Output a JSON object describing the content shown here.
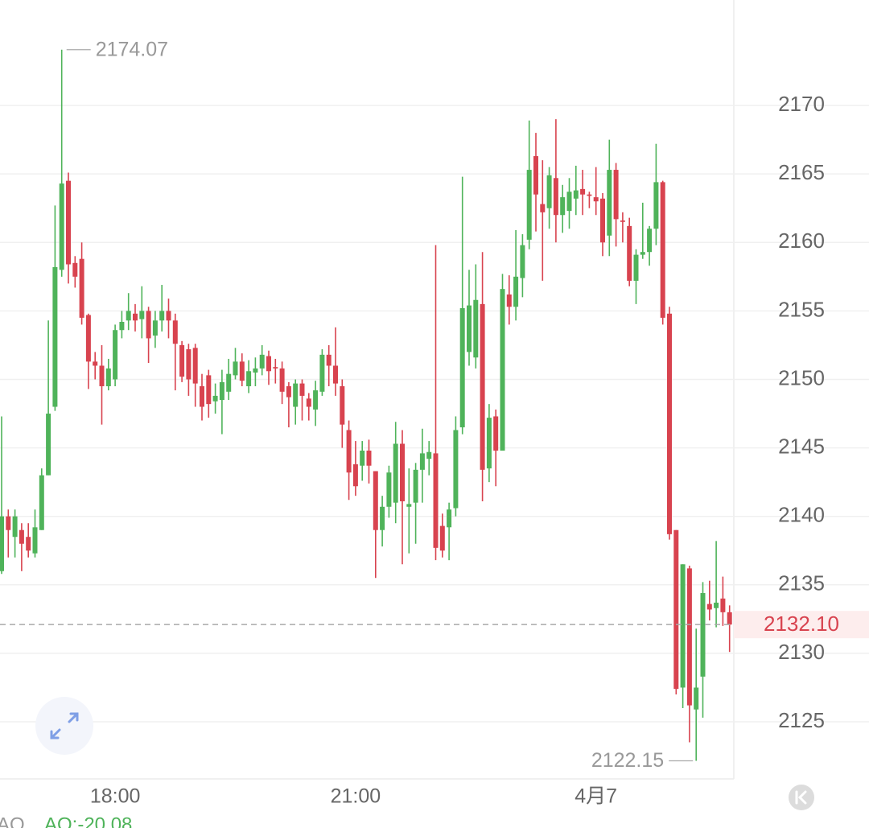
{
  "chart_data": {
    "type": "candlestick",
    "categories": [
      null,
      null,
      null,
      null,
      null,
      null,
      null,
      null,
      null,
      null,
      null,
      null,
      null,
      null,
      null,
      null,
      null,
      "18:00",
      null,
      null,
      null,
      null,
      null,
      null,
      null,
      null,
      null,
      null,
      null,
      null,
      null,
      null,
      null,
      null,
      null,
      null,
      null,
      null,
      null,
      null,
      null,
      null,
      null,
      null,
      null,
      null,
      null,
      null,
      null,
      null,
      null,
      null,
      null,
      "21:00",
      null,
      null,
      null,
      null,
      null,
      null,
      null,
      null,
      null,
      null,
      null,
      null,
      null,
      null,
      null,
      null,
      null,
      null,
      null,
      null,
      null,
      null,
      null,
      null,
      null,
      null,
      null,
      null,
      null,
      null,
      null,
      null,
      null,
      null,
      null,
      "4月7",
      null,
      null,
      null,
      null,
      null,
      null,
      null,
      null,
      null,
      null,
      null,
      null,
      null,
      null,
      null,
      null,
      null,
      null,
      null,
      null
    ],
    "open": [
      2136,
      2140,
      2138.5,
      2139,
      2138.5,
      2137.3,
      2139,
      2143,
      2148,
      2158,
      2164.5,
      2158.5,
      2158.8,
      2154.7,
      2151.3,
      2151,
      2149.5,
      2150,
      2153.6,
      2154.3,
      2154.8,
      2154.4,
      2155,
      2153.2,
      2154.3,
      2155,
      2154.3,
      2152.5,
      2152.2,
      2152.3,
      2149.5,
      2150.3,
      2148.4,
      2148.5,
      2149.1,
      2150.3,
      2151.3,
      2149.5,
      2150.5,
      2150.8,
      2151.7,
      2150.9,
      2150.8,
      2149.5,
      2148,
      2149.7,
      2148.6,
      2147.8,
      2149.1,
      2151.8,
      2151,
      2149.5,
      2146.3,
      2143.8,
      2143.7,
      2144.8,
      2143.3,
      2139,
      2140.7,
      2141,
      2145.3,
      2140.7,
      2141,
      2143.4,
      2144.2,
      2144.6,
      2139.3,
      2139.2,
      2140.6,
      2146.5,
      2152,
      2151.6,
      2155.5,
      2143.5,
      2147.3,
      2144.8,
      2156.2,
      2155.3,
      2157.4,
      2160.2,
      2166.3,
      2162.8,
      2162.5,
      2164.7,
      2162,
      2162.3,
      2163.2,
      2163.9,
      2163.5,
      2163.3,
      2163.2,
      2160.5,
      2165.3,
      2161.6,
      2161.2,
      2157.2,
      2159.1,
      2159.3,
      2161,
      2164.4,
      2154.8,
      2139,
      2127.5,
      2136.2,
      2125.9,
      2128.3,
      2133.6,
      2133.3,
      2134,
      2133
    ],
    "high": [
      2147.3,
      2140.5,
      2140.5,
      2139.5,
      2139.5,
      2140.5,
      2143.5,
      2154.3,
      2162.7,
      2174.07,
      2165.1,
      2159,
      2160,
      2154.8,
      2152,
      2152.5,
      2151.5,
      2154,
      2155,
      2156.3,
      2155.5,
      2156.8,
      2155.3,
      2155,
      2156.9,
      2155.9,
      2154.8,
      2152.8,
      2152.6,
      2152.6,
      2150.4,
      2150.7,
      2149.7,
      2150.7,
      2151.5,
      2152.3,
      2151.9,
      2151.4,
      2151.6,
      2152.5,
      2152.1,
      2151.5,
      2151.3,
      2149.8,
      2150,
      2150,
      2149,
      2149.9,
      2152.2,
      2152.5,
      2153.8,
      2150,
      2147,
      2145.5,
      2145.5,
      2145.6,
      2143.3,
      2141.5,
      2143.7,
      2146.9,
      2146.3,
      2143.5,
      2143.9,
      2146.4,
      2145.5,
      2159.8,
      2140.2,
      2141,
      2147.3,
      2164.8,
      2158,
      2158.4,
      2159.3,
      2148.2,
      2147.8,
      2157.7,
      2157.6,
      2160.9,
      2160.6,
      2168.9,
      2168,
      2166,
      2165.5,
      2169,
      2164.2,
      2164.7,
      2165.6,
      2165.3,
      2163.7,
      2165.5,
      2163.6,
      2167.5,
      2165.8,
      2162.2,
      2161.8,
      2159.5,
      2162.9,
      2161.2,
      2167.2,
      2164.5,
      2155.3,
      2139,
      2136.5,
      2136.4,
      2131.8,
      2135.2,
      2135.3,
      2138.2,
      2135.6,
      2133.5
    ],
    "low": [
      2135.8,
      2137,
      2137,
      2136,
      2137,
      2137,
      2139,
      2143,
      2147.7,
      2157.5,
      2157,
      2156.7,
      2154,
      2149.3,
      2150,
      2146.7,
      2149.2,
      2149.5,
      2153,
      2153.6,
      2153.5,
      2153,
      2151.2,
      2152.3,
      2153.5,
      2153,
      2149.2,
      2149.8,
      2148.8,
      2148,
      2147,
      2147.2,
      2147.5,
      2146,
      2148.5,
      2150,
      2149.5,
      2149,
      2149.5,
      2150.3,
      2149.6,
      2149.7,
      2148.2,
      2146.5,
      2146.7,
      2147,
      2147,
      2146.6,
      2148.8,
      2149.5,
      2148.8,
      2145,
      2141.2,
      2141.5,
      2142.6,
      2142.4,
      2135.5,
      2137.8,
      2139.9,
      2139.5,
      2136.5,
      2137.3,
      2138,
      2141,
      2143,
      2136.8,
      2137,
      2136.8,
      2140,
      2146,
      2151,
      2150.8,
      2141.1,
      2142.5,
      2142.2,
      2144.8,
      2154,
      2154.3,
      2156,
      2159.5,
      2160.8,
      2157.2,
      2161,
      2160,
      2160.7,
      2161,
      2162,
      2162,
      2162.5,
      2162,
      2159,
      2159,
      2159.7,
      2160,
      2156.8,
      2155.5,
      2158.8,
      2158.3,
      2159.8,
      2154,
      2138.3,
      2127,
      2126,
      2123.5,
      2122.15,
      2125.3,
      2132.4,
      2131.9,
      2132,
      2130.1
    ],
    "close": [
      2140,
      2139,
      2140,
      2138,
      2137.5,
      2139.2,
      2143,
      2147.5,
      2158.2,
      2164.3,
      2158.4,
      2157.5,
      2154.5,
      2151.3,
      2151,
      2149.5,
      2150.8,
      2153.6,
      2154.2,
      2155,
      2154.3,
      2155,
      2153,
      2154.3,
      2155,
      2154.3,
      2152.6,
      2150.2,
      2150,
      2149.7,
      2148,
      2148.2,
      2148.8,
      2149.8,
      2150.4,
      2151.3,
      2149.9,
      2150.6,
      2150.8,
      2151.8,
      2150.6,
      2150.8,
      2149.1,
      2148.7,
      2149.7,
      2148.8,
      2148,
      2149.2,
      2151.8,
      2151,
      2149.7,
      2146.7,
      2143.2,
      2142.2,
      2144.8,
      2143.7,
      2139,
      2140.7,
      2143.2,
      2145.3,
      2141.1,
      2140.9,
      2143.4,
      2144.6,
      2144.7,
      2137.7,
      2137.5,
      2140.5,
      2146.3,
      2155.2,
      2155.4,
      2155.8,
      2143.4,
      2147.2,
      2144.8,
      2156.6,
      2155.3,
      2157.5,
      2159.8,
      2165.3,
      2163.5,
      2162.2,
      2164.9,
      2162,
      2163.3,
      2163.7,
      2163.8,
      2163.5,
      2163.4,
      2163,
      2160,
      2165.3,
      2161.7,
      2161.5,
      2157.2,
      2159.1,
      2159.3,
      2161,
      2164.4,
      2154.5,
      2138.7,
      2127.4,
      2136.5,
      2126.2,
      2127.5,
      2134.4,
      2133.2,
      2133.7,
      2133,
      2132.1
    ],
    "up_color": "#4fb35a",
    "down_color": "#d8434f",
    "ylim": [
      2120.83,
      2177.7
    ],
    "yticks": [
      2125,
      2130,
      2135,
      2140,
      2145,
      2150,
      2155,
      2160,
      2165,
      2170
    ],
    "grid": true,
    "max_label": 2174.07,
    "min_label": 2122.15,
    "last_price": {
      "value": 2132.1,
      "label": "2132.10"
    },
    "indicator": {
      "name": "AO",
      "label": "AO:-20.08"
    }
  }
}
